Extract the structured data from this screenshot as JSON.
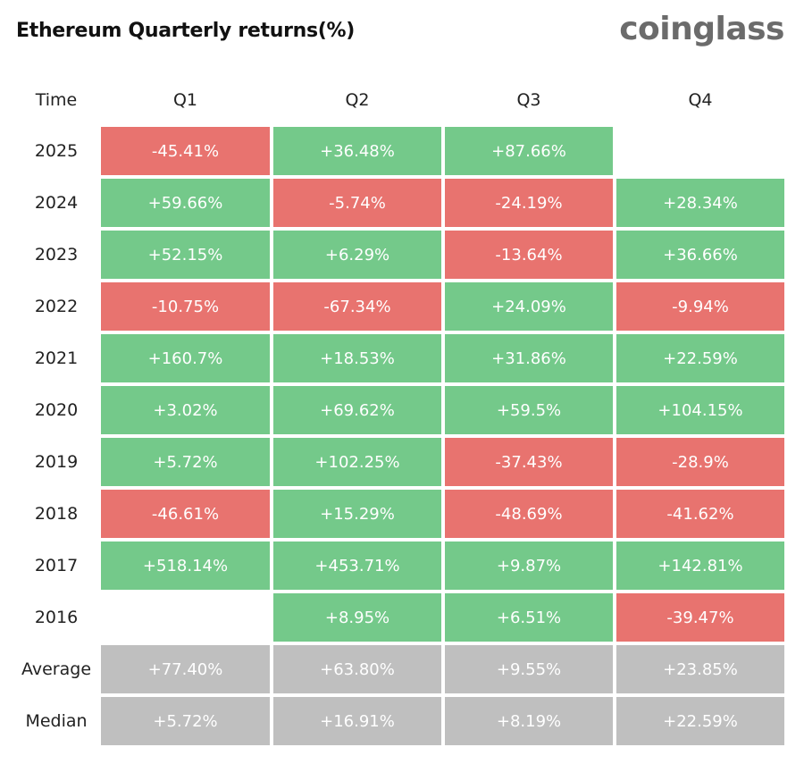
{
  "header": {
    "title": "Ethereum Quarterly returns(%)",
    "logo": "coinglass"
  },
  "table": {
    "columns": [
      "Time",
      "Q1",
      "Q2",
      "Q3",
      "Q4"
    ],
    "rows": [
      [
        "2025",
        "-45.41%",
        "+36.48%",
        "+87.66%",
        null
      ],
      [
        "2024",
        "+59.66%",
        "-5.74%",
        "-24.19%",
        "+28.34%"
      ],
      [
        "2023",
        "+52.15%",
        "+6.29%",
        "-13.64%",
        "+36.66%"
      ],
      [
        "2022",
        "-10.75%",
        "-67.34%",
        "+24.09%",
        "-9.94%"
      ],
      [
        "2021",
        "+160.7%",
        "+18.53%",
        "+31.86%",
        "+22.59%"
      ],
      [
        "2020",
        "+3.02%",
        "+69.62%",
        "+59.5%",
        "+104.15%"
      ],
      [
        "2019",
        "+5.72%",
        "+102.25%",
        "-37.43%",
        "-28.9%"
      ],
      [
        "2018",
        "-46.61%",
        "+15.29%",
        "-48.69%",
        "-41.62%"
      ],
      [
        "2017",
        "+518.14%",
        "+453.71%",
        "+9.87%",
        "+142.81%"
      ],
      [
        "2016",
        null,
        "+8.95%",
        "+6.51%",
        "-39.47%"
      ]
    ],
    "summary_rows": [
      [
        "Average",
        "+77.40%",
        "+63.80%",
        "+9.55%",
        "+23.85%"
      ],
      [
        "Median",
        "+5.72%",
        "+16.91%",
        "+8.19%",
        "+22.59%"
      ]
    ]
  },
  "colors": {
    "positive": "#74c98a",
    "negative": "#e8736f",
    "summary": "#bfbfbf"
  }
}
